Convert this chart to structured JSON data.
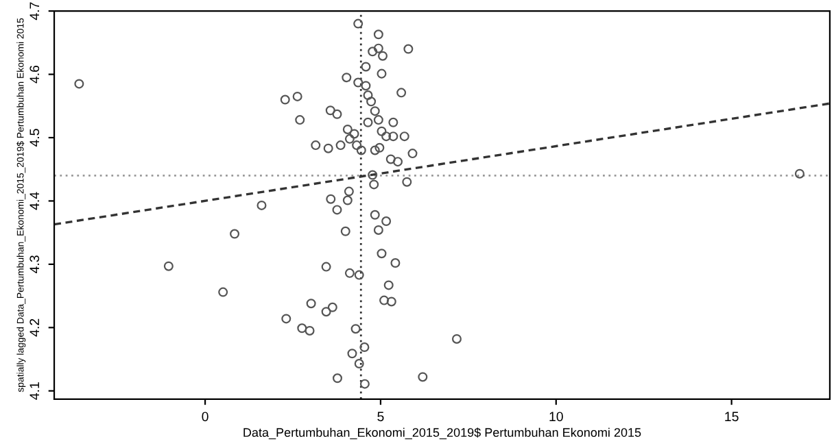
{
  "chart_data": {
    "type": "scatter",
    "xlabel": "Data_Pertumbuhan_Ekonomi_2015_2019$ Pertumbuhan Ekonomi 2015",
    "ylabel": "spatially lagged Data_Pertumbuhan_Ekonomi_2015_2019$ Pertumbuhan Ekonomi 2015",
    "xlim": [
      -4.3,
      17.8
    ],
    "ylim": [
      4.087,
      4.7
    ],
    "xticks": [
      0,
      5,
      10,
      15
    ],
    "yticks": [
      4.1,
      4.2,
      4.3,
      4.4,
      4.5,
      4.6,
      4.7
    ],
    "grid": false,
    "ref_lines": [
      {
        "axis": "x",
        "value": 4.44,
        "color": "#333333",
        "line_style": "dotted"
      },
      {
        "axis": "y",
        "value": 4.44,
        "color": "#999999",
        "line_style": "dotted"
      }
    ],
    "series": [
      {
        "color": "#555555",
        "marker": "circle",
        "x": [
          -3.59,
          0.84,
          -1.04,
          0.51,
          1.61,
          2.28,
          2.63,
          2.7,
          3.15,
          3.51,
          3.57,
          3.76,
          4.03,
          4.36,
          4.36,
          4.06,
          4.12,
          3.86,
          4.32,
          4.25,
          4.58,
          4.58,
          4.64,
          4.77,
          4.94,
          4.94,
          5.06,
          5.03,
          4.73,
          4.84,
          4.94,
          5.03,
          5.16,
          5.36,
          5.36,
          5.59,
          5.79,
          5.68,
          5.91,
          4.84,
          4.97,
          5.29,
          5.49,
          5.75,
          4.77,
          4.81,
          4.84,
          5.16,
          4.94,
          5.03,
          5.42,
          5.23,
          5.1,
          5.31,
          4.1,
          4.06,
          3.58,
          3.76,
          4.0,
          4.12,
          4.39,
          3.45,
          3.02,
          3.63,
          3.45,
          2.31,
          2.76,
          2.98,
          4.29,
          4.54,
          4.19,
          4.39,
          3.77,
          4.55,
          6.2,
          7.17,
          16.94,
          4.45,
          4.64
        ],
        "values": [
          4.585,
          4.348,
          4.297,
          4.256,
          4.393,
          4.56,
          4.565,
          4.528,
          4.488,
          4.483,
          4.543,
          4.537,
          4.595,
          4.587,
          4.68,
          4.513,
          4.498,
          4.488,
          4.488,
          4.506,
          4.612,
          4.582,
          4.567,
          4.636,
          4.663,
          4.641,
          4.629,
          4.601,
          4.557,
          4.542,
          4.528,
          4.51,
          4.502,
          4.524,
          4.502,
          4.571,
          4.64,
          4.502,
          4.475,
          4.48,
          4.484,
          4.466,
          4.462,
          4.43,
          4.441,
          4.426,
          4.378,
          4.368,
          4.354,
          4.317,
          4.302,
          4.267,
          4.243,
          4.241,
          4.415,
          4.401,
          4.403,
          4.386,
          4.352,
          4.286,
          4.283,
          4.296,
          4.238,
          4.232,
          4.225,
          4.214,
          4.199,
          4.195,
          4.198,
          4.169,
          4.159,
          4.143,
          4.12,
          4.111,
          4.122,
          4.182,
          4.443,
          4.48,
          4.524
        ]
      },
      {
        "type": "line",
        "color": "#333333",
        "line_style": "dashed",
        "marker": "none",
        "x": [
          -4.3,
          17.8
        ],
        "values": [
          4.363,
          4.554
        ]
      }
    ]
  }
}
